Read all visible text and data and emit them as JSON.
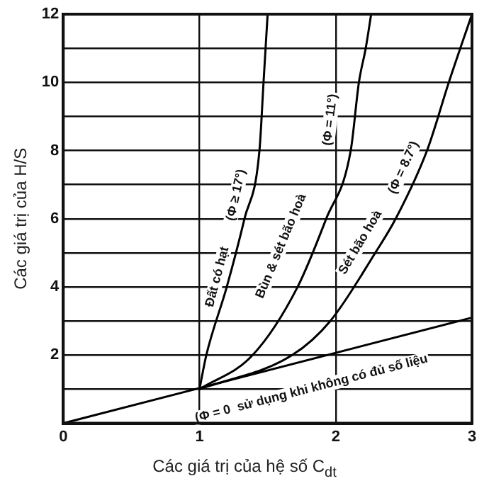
{
  "chart_data": {
    "type": "line",
    "xlabel": "Các giá trị của hệ số C$_{dt}$",
    "ylabel": "Các giá trị của H/S",
    "xlim": [
      0,
      3
    ],
    "xticks": [
      0,
      1,
      2,
      3
    ],
    "ylim": [
      0,
      12
    ],
    "yticks": [
      {
        "value": 0,
        "label": null
      },
      {
        "value": 1,
        "label": null
      },
      2,
      {
        "value": 3,
        "label": null
      },
      4,
      {
        "value": 5,
        "label": null
      },
      6,
      {
        "value": 7,
        "label": null
      },
      8,
      {
        "value": 9,
        "label": null
      },
      10,
      {
        "value": 11,
        "label": null
      },
      12
    ],
    "grid": true,
    "legend": false,
    "marker": "none",
    "line_style": "solid",
    "series": [
      {
        "color": "#000000",
        "x": [
          0,
          3
        ],
        "values": [
          0,
          3.1
        ]
      },
      {
        "color": "#000000",
        "x": [
          1,
          1.05,
          1.2,
          1.33,
          1.44,
          1.47,
          1.5
        ],
        "values": [
          1,
          2,
          4,
          6,
          8,
          10,
          12
        ]
      },
      {
        "color": "#000000",
        "x": [
          1,
          1.39,
          1.72,
          1.93,
          2.11,
          2.17,
          2.22,
          2.26
        ],
        "values": [
          1,
          2,
          4,
          6,
          8,
          10,
          11,
          12
        ]
      },
      {
        "color": "#000000",
        "x": [
          1,
          1.68,
          1.96,
          2.29,
          2.44,
          2.67,
          2.83,
          3
        ],
        "values": [
          1,
          2,
          3,
          5,
          6,
          8,
          10,
          12
        ]
      }
    ],
    "annotations": [
      "Đất có hạt",
      "(Φ ≥ 17°)",
      "Bùn & sét bão hoà",
      "(Φ = 11°)",
      "Sét bão hoà",
      "(Φ = 8.7°)",
      "(Φ = 0  sử dụng khi không có đủ số liệu"
    ]
  }
}
